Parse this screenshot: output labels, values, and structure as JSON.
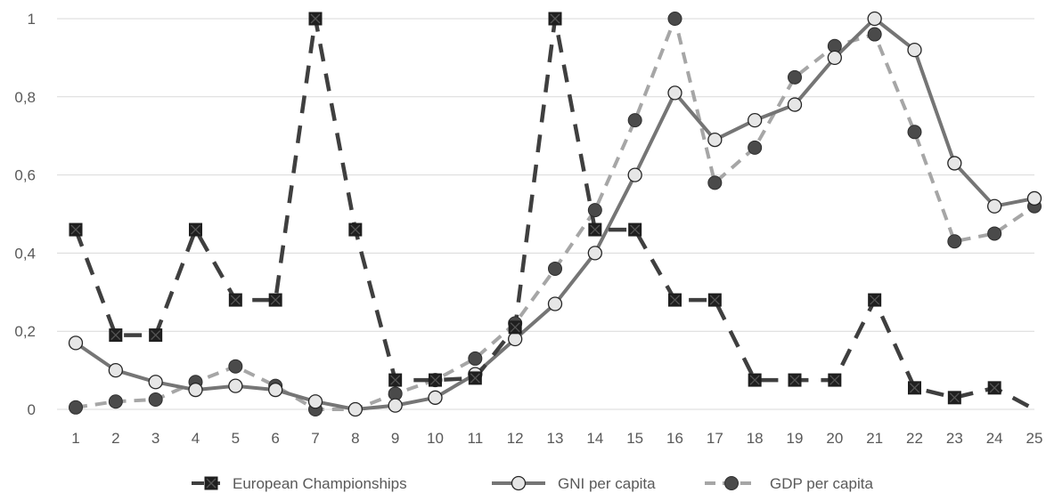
{
  "chart_data": {
    "type": "line",
    "title": "",
    "xlabel": "",
    "ylabel": "",
    "x": [
      "1",
      "2",
      "3",
      "4",
      "5",
      "6",
      "7",
      "8",
      "9",
      "10",
      "11",
      "12",
      "13",
      "14",
      "15",
      "16",
      "17",
      "18",
      "19",
      "20",
      "21",
      "22",
      "23",
      "24",
      "25"
    ],
    "ylim": [
      0,
      1
    ],
    "y_ticks": [
      "0",
      "0,2",
      "0,4",
      "0,6",
      "0,8",
      "1"
    ],
    "y_tick_values": [
      0,
      0.2,
      0.4,
      0.6,
      0.8,
      1
    ],
    "grid": true,
    "legend_position": "bottom",
    "series": [
      {
        "name": "European Championships",
        "line_style": "long-dash",
        "marker": "square-x",
        "color": "#3f3f3f",
        "values": [
          0.46,
          0.19,
          0.19,
          0.46,
          0.28,
          0.28,
          1.0,
          0.46,
          0.075,
          0.075,
          0.08,
          0.21,
          1.0,
          0.46,
          0.46,
          0.28,
          0.28,
          0.075,
          0.075,
          0.075,
          0.28,
          0.055,
          0.03,
          0.055,
          0.0
        ]
      },
      {
        "name": "GNI per capita",
        "line_style": "solid",
        "marker": "open-circle",
        "color": "#757575",
        "values": [
          0.17,
          0.1,
          0.07,
          0.05,
          0.06,
          0.05,
          0.02,
          0.0,
          0.01,
          0.03,
          0.09,
          0.18,
          0.27,
          0.4,
          0.6,
          0.81,
          0.69,
          0.74,
          0.78,
          0.9,
          1.0,
          0.92,
          0.63,
          0.52,
          0.54
        ]
      },
      {
        "name": "GDP per capita",
        "line_style": "dash",
        "marker": "filled-circle",
        "color": "#a6a6a6",
        "values": [
          0.005,
          0.02,
          0.025,
          0.07,
          0.11,
          0.06,
          0.0,
          0.0,
          0.04,
          0.075,
          0.13,
          0.22,
          0.36,
          0.51,
          0.74,
          1.0,
          0.58,
          0.67,
          0.85,
          0.93,
          0.96,
          0.71,
          0.43,
          0.45,
          0.52
        ]
      }
    ]
  }
}
